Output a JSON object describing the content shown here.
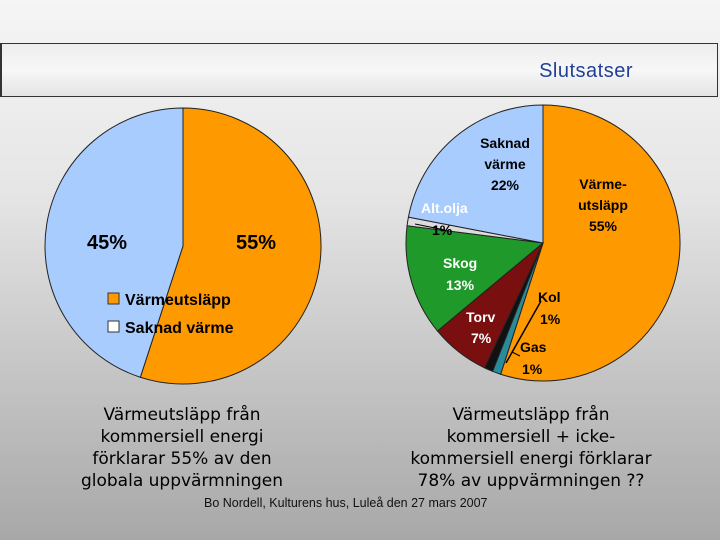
{
  "slide": {
    "title": "Slutsatser",
    "footer": "Bo Nordell, Kulturens hus, Luleå den 27 mars 2007"
  },
  "chart_data": [
    {
      "type": "pie",
      "slices": [
        {
          "label": "Värmeutsläpp",
          "value": 55,
          "display": "55%",
          "color": "#ff9900"
        },
        {
          "label": "Saknad värme",
          "value": 45,
          "display": "45%",
          "color": "#a9ccff"
        }
      ],
      "legend": [
        "Värmeutsläpp",
        "Saknad värme"
      ],
      "legend_position": "bottom-left",
      "caption": "Värmeutsläpp från\nkommersiell energi\nförklarar 55% av den\nglobala uppvärmningen"
    },
    {
      "type": "pie",
      "slices": [
        {
          "label": "Värme-utsläpp",
          "value": 55,
          "display": "55%",
          "color": "#ff9900"
        },
        {
          "label": "Gas",
          "value": 1,
          "display": "1%",
          "color": "#2a8b9a"
        },
        {
          "label": "Kol",
          "value": 1,
          "display": "1%",
          "color": "#111111"
        },
        {
          "label": "Torv",
          "value": 7,
          "display": "7%",
          "color": "#7a0f0f"
        },
        {
          "label": "Skog",
          "value": 13,
          "display": "13%",
          "color": "#1f9a2a"
        },
        {
          "label": "Alt.olja",
          "value": 1,
          "display": "1%",
          "color": "#dcdcdc"
        },
        {
          "label": "Saknad värme",
          "value": 22,
          "display": "22%",
          "color": "#a9ccff"
        }
      ],
      "caption": "Värmeutsläpp från\nkommersiell + icke-\nkommersiell energi förklarar\n78% av uppvärmningen   ??"
    }
  ]
}
